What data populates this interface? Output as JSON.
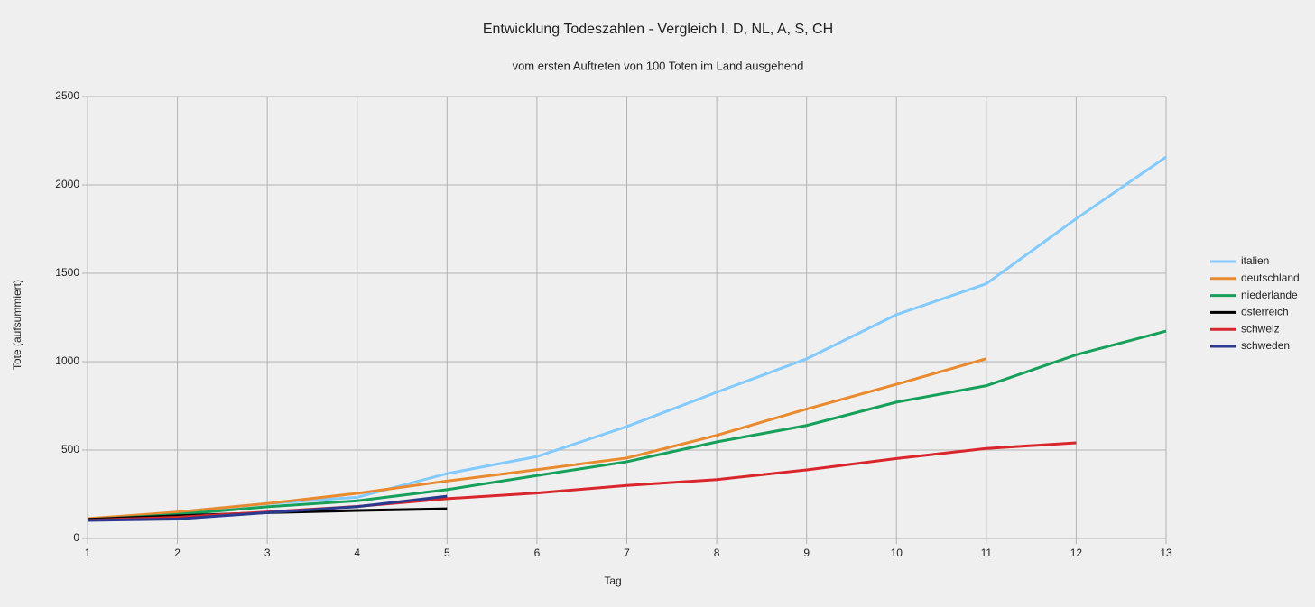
{
  "chart_data": {
    "type": "line",
    "title": "Entwicklung Todeszahlen - Vergleich I, D, NL, A, S, CH",
    "subtitle": "vom ersten Auftreten von 100 Toten im Land ausgehend",
    "x_label": "Tag",
    "y_label": "Tote (aufsummiert)",
    "x": [
      1,
      2,
      3,
      4,
      5,
      6,
      7,
      8,
      9,
      10,
      11,
      12,
      13
    ],
    "xlim": [
      1,
      13
    ],
    "xticks": [
      1,
      2,
      3,
      4,
      5,
      6,
      7,
      8,
      9,
      10,
      11,
      12,
      13
    ],
    "ylim": [
      0,
      2500
    ],
    "yticks": [
      0,
      500,
      1000,
      1500,
      2000,
      2500
    ],
    "grid": true,
    "legend": "right",
    "series": [
      {
        "name": "italien",
        "color": "#83caff",
        "values": [
          102,
          150,
          197,
          233,
          367,
          463,
          633,
          827,
          1016,
          1266,
          1441,
          1809,
          2158
        ]
      },
      {
        "name": "deutschland",
        "color": "#ea8a2f",
        "values": [
          112,
          149,
          198,
          255,
          325,
          389,
          455,
          583,
          732,
          872,
          1017,
          null,
          null
        ]
      },
      {
        "name": "niederlande",
        "color": "#16a05a",
        "values": [
          106,
          136,
          179,
          213,
          276,
          356,
          434,
          546,
          639,
          771,
          864,
          1039,
          1173
        ]
      },
      {
        "name": "österreich",
        "color": "#000000",
        "values": [
          108,
          128,
          146,
          158,
          168,
          null,
          null,
          null,
          null,
          null,
          null,
          null,
          null
        ]
      },
      {
        "name": "schweiz",
        "color": "#d9262c",
        "values": [
          103,
          120,
          150,
          181,
          225,
          257,
          300,
          333,
          388,
          452,
          509,
          541,
          null
        ]
      },
      {
        "name": "schweden",
        "color": "#2a3a8f",
        "values": [
          102,
          110,
          146,
          180,
          239,
          null,
          null,
          null,
          null,
          null,
          null,
          null,
          null
        ]
      }
    ]
  }
}
